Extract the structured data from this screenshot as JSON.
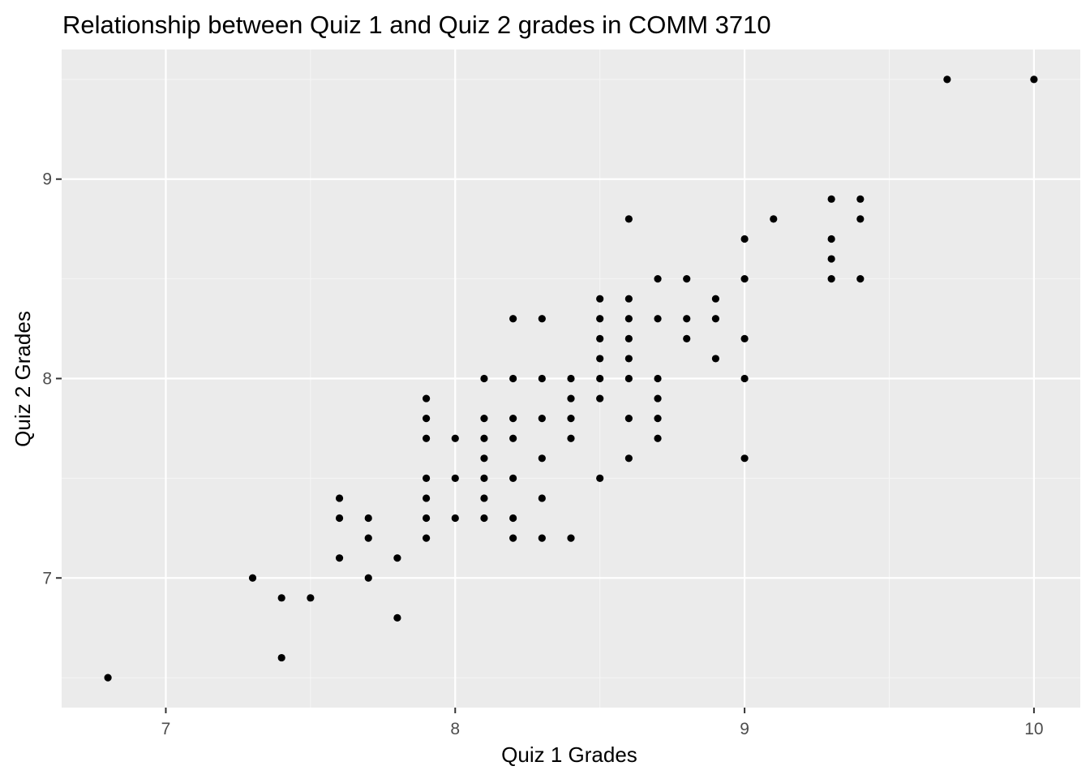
{
  "chart_data": {
    "type": "scatter",
    "title": "Relationship between Quiz 1 and Quiz 2 grades in COMM 3710",
    "xlabel": "Quiz 1 Grades",
    "ylabel": "Quiz 2 Grades",
    "xlim": [
      6.64,
      10.16
    ],
    "ylim": [
      6.35,
      9.65
    ],
    "x_ticks": [
      7,
      8,
      9,
      10
    ],
    "y_ticks": [
      7,
      8,
      9
    ],
    "x_tick_labels": [
      "7",
      "8",
      "9",
      "10"
    ],
    "y_tick_labels": [
      "7",
      "8",
      "9"
    ],
    "grid": true,
    "colors": {
      "panel_background": "#ebebeb",
      "grid_major": "#ffffff",
      "grid_minor": "#f5f5f5",
      "point": "#000000",
      "tick": "#333333"
    },
    "points": [
      [
        6.8,
        6.5
      ],
      [
        7.3,
        7.0
      ],
      [
        7.4,
        6.9
      ],
      [
        7.4,
        6.6
      ],
      [
        7.5,
        6.9
      ],
      [
        7.6,
        7.4
      ],
      [
        7.6,
        7.3
      ],
      [
        7.6,
        7.1
      ],
      [
        7.7,
        7.3
      ],
      [
        7.7,
        7.2
      ],
      [
        7.7,
        7.0
      ],
      [
        7.8,
        7.1
      ],
      [
        7.8,
        6.8
      ],
      [
        7.9,
        7.9
      ],
      [
        7.9,
        7.8
      ],
      [
        7.9,
        7.7
      ],
      [
        7.9,
        7.5
      ],
      [
        7.9,
        7.4
      ],
      [
        7.9,
        7.3
      ],
      [
        7.9,
        7.2
      ],
      [
        8.0,
        7.7
      ],
      [
        8.0,
        7.5
      ],
      [
        8.0,
        7.3
      ],
      [
        8.1,
        8.0
      ],
      [
        8.1,
        7.8
      ],
      [
        8.1,
        7.7
      ],
      [
        8.1,
        7.6
      ],
      [
        8.1,
        7.5
      ],
      [
        8.1,
        7.4
      ],
      [
        8.1,
        7.3
      ],
      [
        8.2,
        8.3
      ],
      [
        8.2,
        8.0
      ],
      [
        8.2,
        7.8
      ],
      [
        8.2,
        7.7
      ],
      [
        8.2,
        7.5
      ],
      [
        8.2,
        7.3
      ],
      [
        8.2,
        7.2
      ],
      [
        8.3,
        8.3
      ],
      [
        8.3,
        8.0
      ],
      [
        8.3,
        7.8
      ],
      [
        8.3,
        7.6
      ],
      [
        8.3,
        7.4
      ],
      [
        8.3,
        7.2
      ],
      [
        8.4,
        8.0
      ],
      [
        8.4,
        7.9
      ],
      [
        8.4,
        7.8
      ],
      [
        8.4,
        7.7
      ],
      [
        8.4,
        7.2
      ],
      [
        8.5,
        8.4
      ],
      [
        8.5,
        8.3
      ],
      [
        8.5,
        8.2
      ],
      [
        8.5,
        8.1
      ],
      [
        8.5,
        8.0
      ],
      [
        8.5,
        7.9
      ],
      [
        8.5,
        7.5
      ],
      [
        8.6,
        8.8
      ],
      [
        8.6,
        8.4
      ],
      [
        8.6,
        8.3
      ],
      [
        8.6,
        8.2
      ],
      [
        8.6,
        8.1
      ],
      [
        8.6,
        8.0
      ],
      [
        8.6,
        7.8
      ],
      [
        8.6,
        7.6
      ],
      [
        8.7,
        8.5
      ],
      [
        8.7,
        8.3
      ],
      [
        8.7,
        8.0
      ],
      [
        8.7,
        7.9
      ],
      [
        8.7,
        7.8
      ],
      [
        8.7,
        7.7
      ],
      [
        8.8,
        8.5
      ],
      [
        8.8,
        8.3
      ],
      [
        8.8,
        8.2
      ],
      [
        8.9,
        8.4
      ],
      [
        8.9,
        8.3
      ],
      [
        8.9,
        8.1
      ],
      [
        9.0,
        8.7
      ],
      [
        9.0,
        8.5
      ],
      [
        9.0,
        8.2
      ],
      [
        9.0,
        8.0
      ],
      [
        9.0,
        7.6
      ],
      [
        9.1,
        8.8
      ],
      [
        9.3,
        8.9
      ],
      [
        9.3,
        8.7
      ],
      [
        9.3,
        8.6
      ],
      [
        9.3,
        8.5
      ],
      [
        9.4,
        8.9
      ],
      [
        9.4,
        8.8
      ],
      [
        9.4,
        8.5
      ],
      [
        9.7,
        9.5
      ],
      [
        10.0,
        9.5
      ]
    ]
  }
}
